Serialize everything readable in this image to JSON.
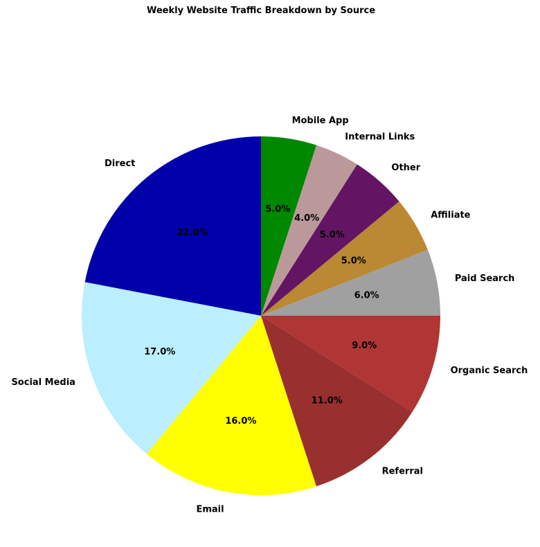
{
  "chart_data": {
    "type": "pie",
    "title": "Weekly Website Traffic Breakdown by Source",
    "start_angle_deg": 90,
    "direction": "counterclockwise",
    "slices": [
      {
        "label": "Direct",
        "value": 22.0,
        "display": "22.0%",
        "color": "#0000aa"
      },
      {
        "label": "Social Media",
        "value": 17.0,
        "display": "17.0%",
        "color": "#bbeeff"
      },
      {
        "label": "Email",
        "value": 16.0,
        "display": "16.0%",
        "color": "#ffff00"
      },
      {
        "label": "Referral",
        "value": 11.0,
        "display": "11.0%",
        "color": "#993030"
      },
      {
        "label": "Organic Search",
        "value": 9.0,
        "display": "9.0%",
        "color": "#b03535"
      },
      {
        "label": "Paid Search",
        "value": 6.0,
        "display": "6.0%",
        "color": "#a0a0a0"
      },
      {
        "label": "Affiliate",
        "value": 5.0,
        "display": "5.0%",
        "color": "#bb8833"
      },
      {
        "label": "Other",
        "value": 5.0,
        "display": "5.0%",
        "color": "#631563"
      },
      {
        "label": "Internal Links",
        "value": 4.0,
        "display": "4.0%",
        "color": "#bb999b"
      },
      {
        "label": "Mobile App",
        "value": 5.0,
        "display": "5.0%",
        "color": "#008800"
      }
    ]
  }
}
